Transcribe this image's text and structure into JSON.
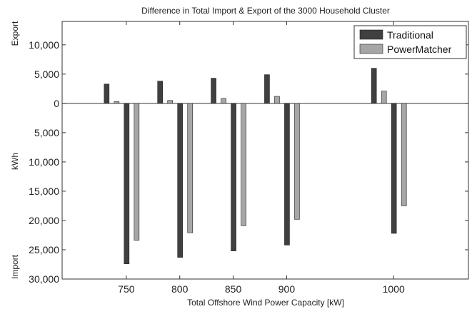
{
  "chart_data": {
    "type": "bar",
    "title": "Difference in Total Import & Export of the 3000 Household Cluster",
    "xlabel": "Total Offshore Wind Power Capacity [kW]",
    "ylabel": "kWh",
    "ylabel_top": "Export",
    "ylabel_bottom": "Import",
    "x": [
      750,
      800,
      850,
      900,
      1000
    ],
    "xlim": [
      690,
      1070
    ],
    "ylim": [
      -30000,
      14000
    ],
    "y_ticks": [
      10000,
      5000,
      0,
      -5000,
      -10000,
      -15000,
      -20000,
      -25000,
      -30000
    ],
    "y_tick_labels": [
      "10,000",
      "5,000",
      "0",
      "5,000",
      "10,000",
      "15,000",
      "20,000",
      "25,000",
      "30,000"
    ],
    "grid": false,
    "legend_position": "top-right",
    "series": [
      {
        "name": "Traditional",
        "color": "#404040",
        "export": [
          3300,
          3800,
          4300,
          4900,
          6000
        ],
        "import": [
          -27400,
          -26300,
          -25200,
          -24200,
          -22200
        ]
      },
      {
        "name": "PowerMatcher",
        "color": "#a6a6a6",
        "export": [
          300,
          500,
          850,
          1200,
          2100
        ],
        "import": [
          -23400,
          -22100,
          -20900,
          -19800,
          -17500
        ]
      }
    ]
  }
}
